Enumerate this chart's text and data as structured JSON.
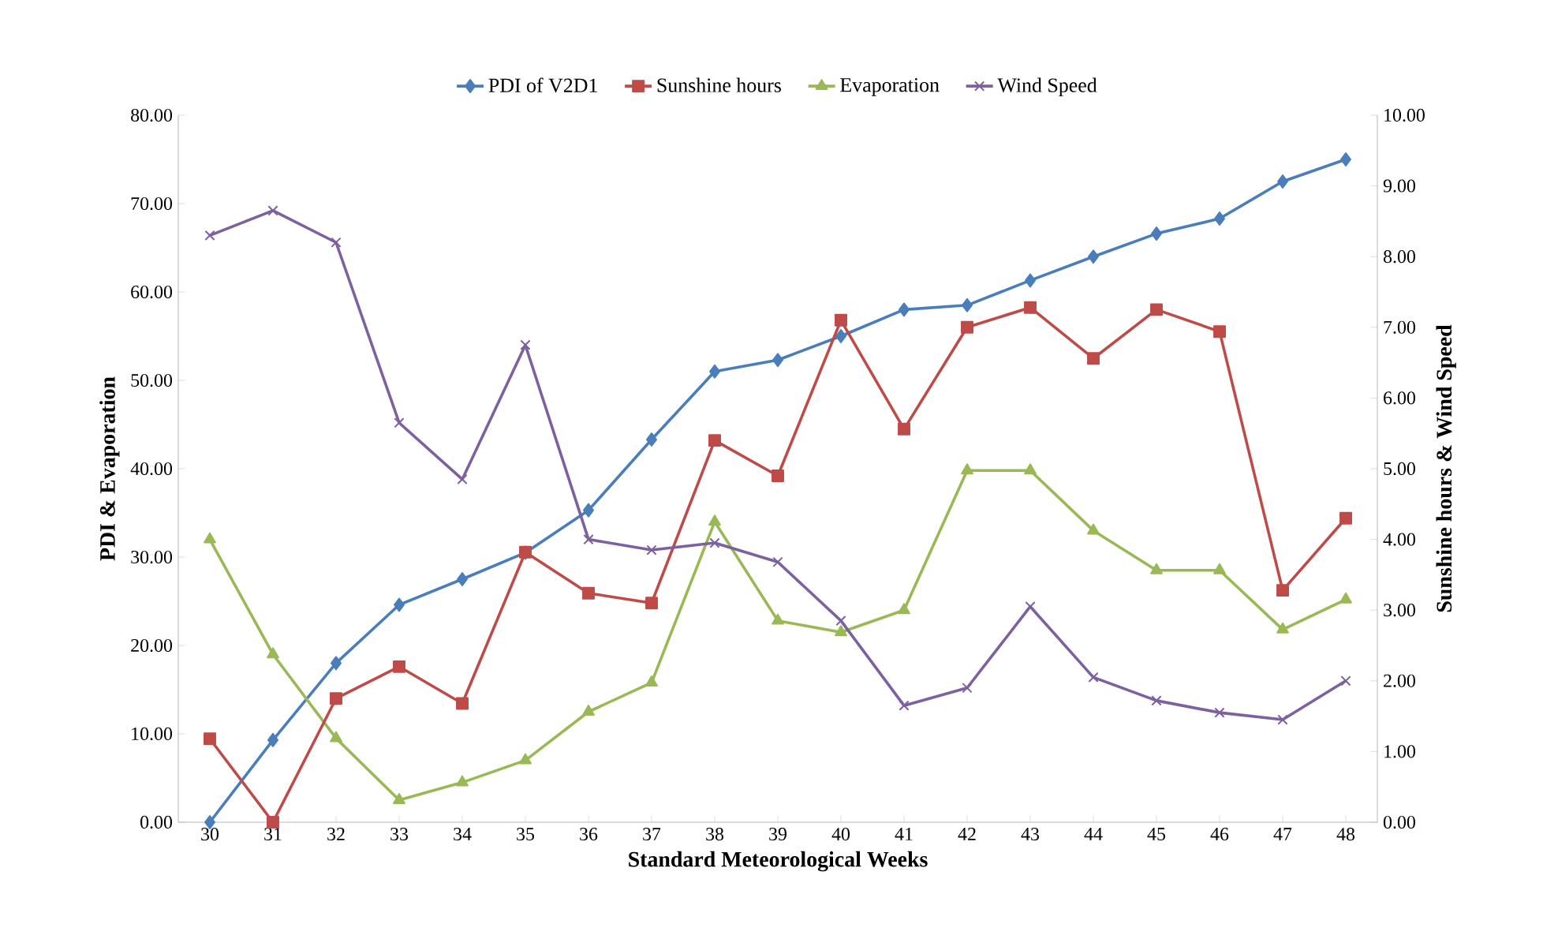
{
  "chart_data": {
    "type": "line",
    "xlabel": "Standard Meteorological Weeks",
    "ylabel": "PDI & Evaporation",
    "y2label": "Sunshine hours & Wind Speed",
    "categories": [
      "30",
      "31",
      "32",
      "33",
      "34",
      "35",
      "36",
      "37",
      "38",
      "39",
      "40",
      "41",
      "42",
      "43",
      "44",
      "45",
      "46",
      "47",
      "48"
    ],
    "ylim": [
      0,
      80
    ],
    "yticks": [
      {
        "value": 0,
        "label": "0.00"
      },
      {
        "value": 10,
        "label": "10.00"
      },
      {
        "value": 20,
        "label": "20.00"
      },
      {
        "value": 30,
        "label": "30.00"
      },
      {
        "value": 40,
        "label": "40.00"
      },
      {
        "value": 50,
        "label": "50.00"
      },
      {
        "value": 60,
        "label": "60.00"
      },
      {
        "value": 70,
        "label": "70.00"
      },
      {
        "value": 80,
        "label": "80.00"
      }
    ],
    "y2lim": [
      0,
      10
    ],
    "y2ticks": [
      {
        "value": 0,
        "label": "0.00"
      },
      {
        "value": 1,
        "label": "1.00"
      },
      {
        "value": 2,
        "label": "2.00"
      },
      {
        "value": 3,
        "label": "3.00"
      },
      {
        "value": 4,
        "label": "4.00"
      },
      {
        "value": 5,
        "label": "5.00"
      },
      {
        "value": 6,
        "label": "6.00"
      },
      {
        "value": 7,
        "label": "7.00"
      },
      {
        "value": 8,
        "label": "8.00"
      },
      {
        "value": 9,
        "label": "9.00"
      },
      {
        "value": 10,
        "label": "10.00"
      }
    ],
    "legend": "top",
    "series": [
      {
        "name": "PDI of V2D1",
        "color": "#4a7ebb",
        "marker": "diamond",
        "values": [
          0,
          9.3,
          18,
          24.6,
          27.5,
          30.5,
          35.3,
          43.3,
          51,
          52.3,
          55,
          58,
          58.5,
          61.3,
          64,
          66.6,
          68.3,
          72.5,
          75
        ]
      },
      {
        "name": "Sunshine hours",
        "color": "#be4b48",
        "marker": "square",
        "axis": "y2",
        "values": [
          1.18,
          0,
          1.75,
          2.2,
          1.68,
          3.82,
          3.24,
          3.1,
          5.4,
          4.9,
          7.1,
          5.56,
          7.0,
          7.28,
          6.56,
          7.25,
          6.94,
          3.28,
          4.3
        ]
      },
      {
        "name": "Evaporation",
        "color": "#98b954",
        "marker": "triangle",
        "values": [
          32,
          19,
          9.5,
          2.5,
          4.5,
          7,
          12.5,
          15.8,
          34,
          22.8,
          21.5,
          24,
          39.8,
          39.8,
          33,
          28.5,
          28.5,
          21.8,
          25.2
        ]
      },
      {
        "name": "Wind Speed",
        "color": "#7d60a0",
        "marker": "cross",
        "axis": "y2",
        "values": [
          8.3,
          8.65,
          8.2,
          5.65,
          4.85,
          6.75,
          4.0,
          3.85,
          3.95,
          3.68,
          2.85,
          1.65,
          1.9,
          3.05,
          2.05,
          1.72,
          1.55,
          1.45,
          2.0
        ]
      }
    ]
  }
}
